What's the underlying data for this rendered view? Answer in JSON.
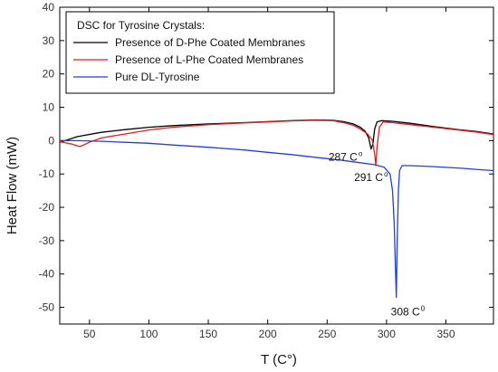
{
  "chart_data": {
    "type": "line",
    "xlabel": "T (C°)",
    "ylabel": "Heat Flow (mW)",
    "xlim": [
      25,
      390
    ],
    "ylim": [
      -55,
      40
    ],
    "xticks": [
      50,
      100,
      150,
      200,
      250,
      300,
      350
    ],
    "yticks": [
      -50,
      -40,
      -30,
      -20,
      -10,
      0,
      10,
      20,
      30,
      40
    ],
    "grid": false,
    "legend": {
      "title": "DSC for Tyrosine Crystals:",
      "placement": "top-left"
    },
    "series": [
      {
        "name": "Presence of D-Phe Coated Membranes",
        "color": "#000000",
        "points": [
          [
            25,
            -0.5
          ],
          [
            40,
            1.2
          ],
          [
            60,
            2.5
          ],
          [
            80,
            3.3
          ],
          [
            100,
            4.0
          ],
          [
            120,
            4.5
          ],
          [
            150,
            5.0
          ],
          [
            180,
            5.4
          ],
          [
            200,
            5.7
          ],
          [
            220,
            6.0
          ],
          [
            240,
            6.2
          ],
          [
            255,
            6.1
          ],
          [
            265,
            5.6
          ],
          [
            272,
            5.0
          ],
          [
            278,
            4.0
          ],
          [
            282,
            2.8
          ],
          [
            285,
            0.8
          ],
          [
            287,
            -2.5
          ],
          [
            288.5,
            -1.0
          ],
          [
            290,
            3.5
          ],
          [
            292,
            5.6
          ],
          [
            296,
            6.0
          ],
          [
            305,
            5.8
          ],
          [
            320,
            5.2
          ],
          [
            340,
            4.2
          ],
          [
            360,
            3.3
          ],
          [
            375,
            2.8
          ],
          [
            390,
            2.0
          ]
        ]
      },
      {
        "name": "Presence of L-Phe Coated Membranes",
        "color": "#e8191c",
        "points": [
          [
            25,
            -0.3
          ],
          [
            35,
            -1.0
          ],
          [
            42,
            -1.8
          ],
          [
            50,
            -0.5
          ],
          [
            60,
            0.8
          ],
          [
            80,
            2.0
          ],
          [
            100,
            3.2
          ],
          [
            120,
            4.0
          ],
          [
            150,
            4.8
          ],
          [
            180,
            5.3
          ],
          [
            200,
            5.6
          ],
          [
            220,
            5.9
          ],
          [
            240,
            6.1
          ],
          [
            255,
            6.0
          ],
          [
            265,
            5.3
          ],
          [
            272,
            4.6
          ],
          [
            278,
            3.5
          ],
          [
            284,
            2.0
          ],
          [
            288,
            0.2
          ],
          [
            290,
            -4.0
          ],
          [
            291,
            -7.5
          ],
          [
            292,
            -2.0
          ],
          [
            294,
            4.0
          ],
          [
            297,
            5.6
          ],
          [
            305,
            5.4
          ],
          [
            320,
            4.8
          ],
          [
            340,
            4.0
          ],
          [
            360,
            3.2
          ],
          [
            375,
            2.6
          ],
          [
            390,
            1.8
          ]
        ]
      },
      {
        "name": "Pure DL-Tyrosine",
        "color": "#1f3de8",
        "points": [
          [
            25,
            0.0
          ],
          [
            40,
            0.0
          ],
          [
            60,
            -0.2
          ],
          [
            80,
            -0.5
          ],
          [
            100,
            -0.8
          ],
          [
            120,
            -1.3
          ],
          [
            150,
            -2.0
          ],
          [
            180,
            -2.8
          ],
          [
            200,
            -3.5
          ],
          [
            220,
            -4.2
          ],
          [
            240,
            -5.0
          ],
          [
            260,
            -5.8
          ],
          [
            275,
            -6.5
          ],
          [
            290,
            -7.2
          ],
          [
            298,
            -8.0
          ],
          [
            303,
            -10.0
          ],
          [
            305,
            -15.0
          ],
          [
            306.5,
            -25.0
          ],
          [
            307.5,
            -38.0
          ],
          [
            308.2,
            -47.0
          ],
          [
            309,
            -30.0
          ],
          [
            310,
            -15.0
          ],
          [
            311,
            -9.0
          ],
          [
            313,
            -7.5
          ],
          [
            320,
            -7.5
          ],
          [
            340,
            -7.8
          ],
          [
            360,
            -8.2
          ],
          [
            375,
            -8.6
          ],
          [
            390,
            -9.0
          ]
        ]
      }
    ],
    "annotations": [
      {
        "text": "287 C",
        "sup": "o",
        "x": 287,
        "y": -2.5
      },
      {
        "text": "291 C",
        "sup": "o",
        "x": 291,
        "y": -7.5
      },
      {
        "text": "308 C",
        "sup": "0",
        "x": 308.2,
        "y": -47.0
      }
    ]
  }
}
